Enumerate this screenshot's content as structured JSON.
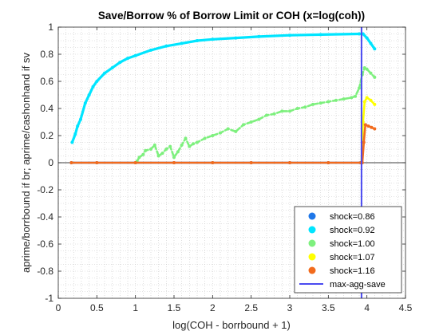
{
  "chart_data": {
    "type": "scatter",
    "title": "Save/Borrow % of Borrow Limit or COH (x=log(coh))",
    "xlabel": "log(COH - borrbound + 1)",
    "ylabel": "aprime/borrbound if br; aprime/cashonhand if sv",
    "xlim": [
      0,
      4.5
    ],
    "ylim": [
      -1,
      1
    ],
    "xticks": [
      "0",
      "0.5",
      "1",
      "1.5",
      "2",
      "2.5",
      "3",
      "3.5",
      "4",
      "4.5"
    ],
    "yticks": [
      "-1",
      "-0.8",
      "-0.6",
      "-0.4",
      "-0.2",
      "0",
      "0.2",
      "0.4",
      "0.6",
      "0.8",
      "1"
    ],
    "grid": "minor-dotted",
    "legend_position": "bottom-right",
    "series": [
      {
        "name": "shock=0.86",
        "color": "#1f77e8",
        "points": [
          [
            0.17,
            0.0
          ],
          [
            0.5,
            0.0
          ],
          [
            1.0,
            0.0
          ],
          [
            1.5,
            0.0
          ],
          [
            2.0,
            0.0
          ],
          [
            2.5,
            0.0
          ],
          [
            3.0,
            0.0
          ],
          [
            3.5,
            0.0
          ],
          [
            3.92,
            0.0
          ],
          [
            3.93,
            0.0
          ]
        ]
      },
      {
        "name": "shock=0.92",
        "color": "#00e5ff",
        "points": [
          [
            0.18,
            0.15
          ],
          [
            0.22,
            0.21
          ],
          [
            0.25,
            0.27
          ],
          [
            0.29,
            0.32
          ],
          [
            0.35,
            0.44
          ],
          [
            0.4,
            0.5
          ],
          [
            0.45,
            0.56
          ],
          [
            0.5,
            0.6
          ],
          [
            0.6,
            0.66
          ],
          [
            0.7,
            0.7
          ],
          [
            0.8,
            0.74
          ],
          [
            0.9,
            0.77
          ],
          [
            1.0,
            0.79
          ],
          [
            1.2,
            0.83
          ],
          [
            1.4,
            0.86
          ],
          [
            1.6,
            0.88
          ],
          [
            1.8,
            0.9
          ],
          [
            2.0,
            0.91
          ],
          [
            2.3,
            0.92
          ],
          [
            2.6,
            0.93
          ],
          [
            3.0,
            0.94
          ],
          [
            3.4,
            0.945
          ],
          [
            3.9,
            0.95
          ],
          [
            3.95,
            0.95
          ],
          [
            4.0,
            0.92
          ],
          [
            4.05,
            0.88
          ],
          [
            4.1,
            0.84
          ]
        ]
      },
      {
        "name": "shock=1.00",
        "color": "#7ef07e",
        "points": [
          [
            1.02,
            0.01
          ],
          [
            1.05,
            0.04
          ],
          [
            1.1,
            0.06
          ],
          [
            1.13,
            0.09
          ],
          [
            1.2,
            0.1
          ],
          [
            1.25,
            0.13
          ],
          [
            1.3,
            0.05
          ],
          [
            1.35,
            0.07
          ],
          [
            1.4,
            0.1
          ],
          [
            1.45,
            0.12
          ],
          [
            1.5,
            0.04
          ],
          [
            1.55,
            0.08
          ],
          [
            1.6,
            0.13
          ],
          [
            1.65,
            0.18
          ],
          [
            1.7,
            0.12
          ],
          [
            1.75,
            0.14
          ],
          [
            1.8,
            0.15
          ],
          [
            1.9,
            0.18
          ],
          [
            2.0,
            0.2
          ],
          [
            2.1,
            0.22
          ],
          [
            2.2,
            0.25
          ],
          [
            2.3,
            0.23
          ],
          [
            2.4,
            0.28
          ],
          [
            2.5,
            0.3
          ],
          [
            2.6,
            0.32
          ],
          [
            2.7,
            0.35
          ],
          [
            2.8,
            0.36
          ],
          [
            2.9,
            0.38
          ],
          [
            3.0,
            0.38
          ],
          [
            3.1,
            0.4
          ],
          [
            3.2,
            0.41
          ],
          [
            3.3,
            0.43
          ],
          [
            3.4,
            0.44
          ],
          [
            3.5,
            0.45
          ],
          [
            3.6,
            0.46
          ],
          [
            3.7,
            0.47
          ],
          [
            3.8,
            0.48
          ],
          [
            3.85,
            0.49
          ],
          [
            3.9,
            0.55
          ],
          [
            3.94,
            0.65
          ],
          [
            3.97,
            0.7
          ],
          [
            4.0,
            0.69
          ],
          [
            4.05,
            0.66
          ],
          [
            4.1,
            0.63
          ]
        ]
      },
      {
        "name": "shock=1.07",
        "color": "#ffff00",
        "points": [
          [
            3.93,
            0.0
          ],
          [
            3.95,
            0.3
          ],
          [
            3.97,
            0.45
          ],
          [
            4.0,
            0.48
          ],
          [
            4.05,
            0.46
          ],
          [
            4.1,
            0.43
          ]
        ]
      },
      {
        "name": "shock=1.16",
        "color": "#f26b1d",
        "points": [
          [
            0.17,
            0.0
          ],
          [
            0.5,
            0.0
          ],
          [
            1.0,
            0.0
          ],
          [
            1.5,
            0.0
          ],
          [
            2.0,
            0.0
          ],
          [
            2.5,
            0.0
          ],
          [
            3.0,
            0.0
          ],
          [
            3.5,
            0.0
          ],
          [
            3.92,
            0.0
          ],
          [
            3.94,
            0.0
          ],
          [
            3.96,
            0.15
          ],
          [
            3.98,
            0.28
          ],
          [
            4.02,
            0.27
          ],
          [
            4.06,
            0.26
          ],
          [
            4.1,
            0.25
          ]
        ]
      }
    ],
    "vline": {
      "name": "max-agg-save",
      "x": 3.93,
      "color": "#4a4af0"
    }
  }
}
